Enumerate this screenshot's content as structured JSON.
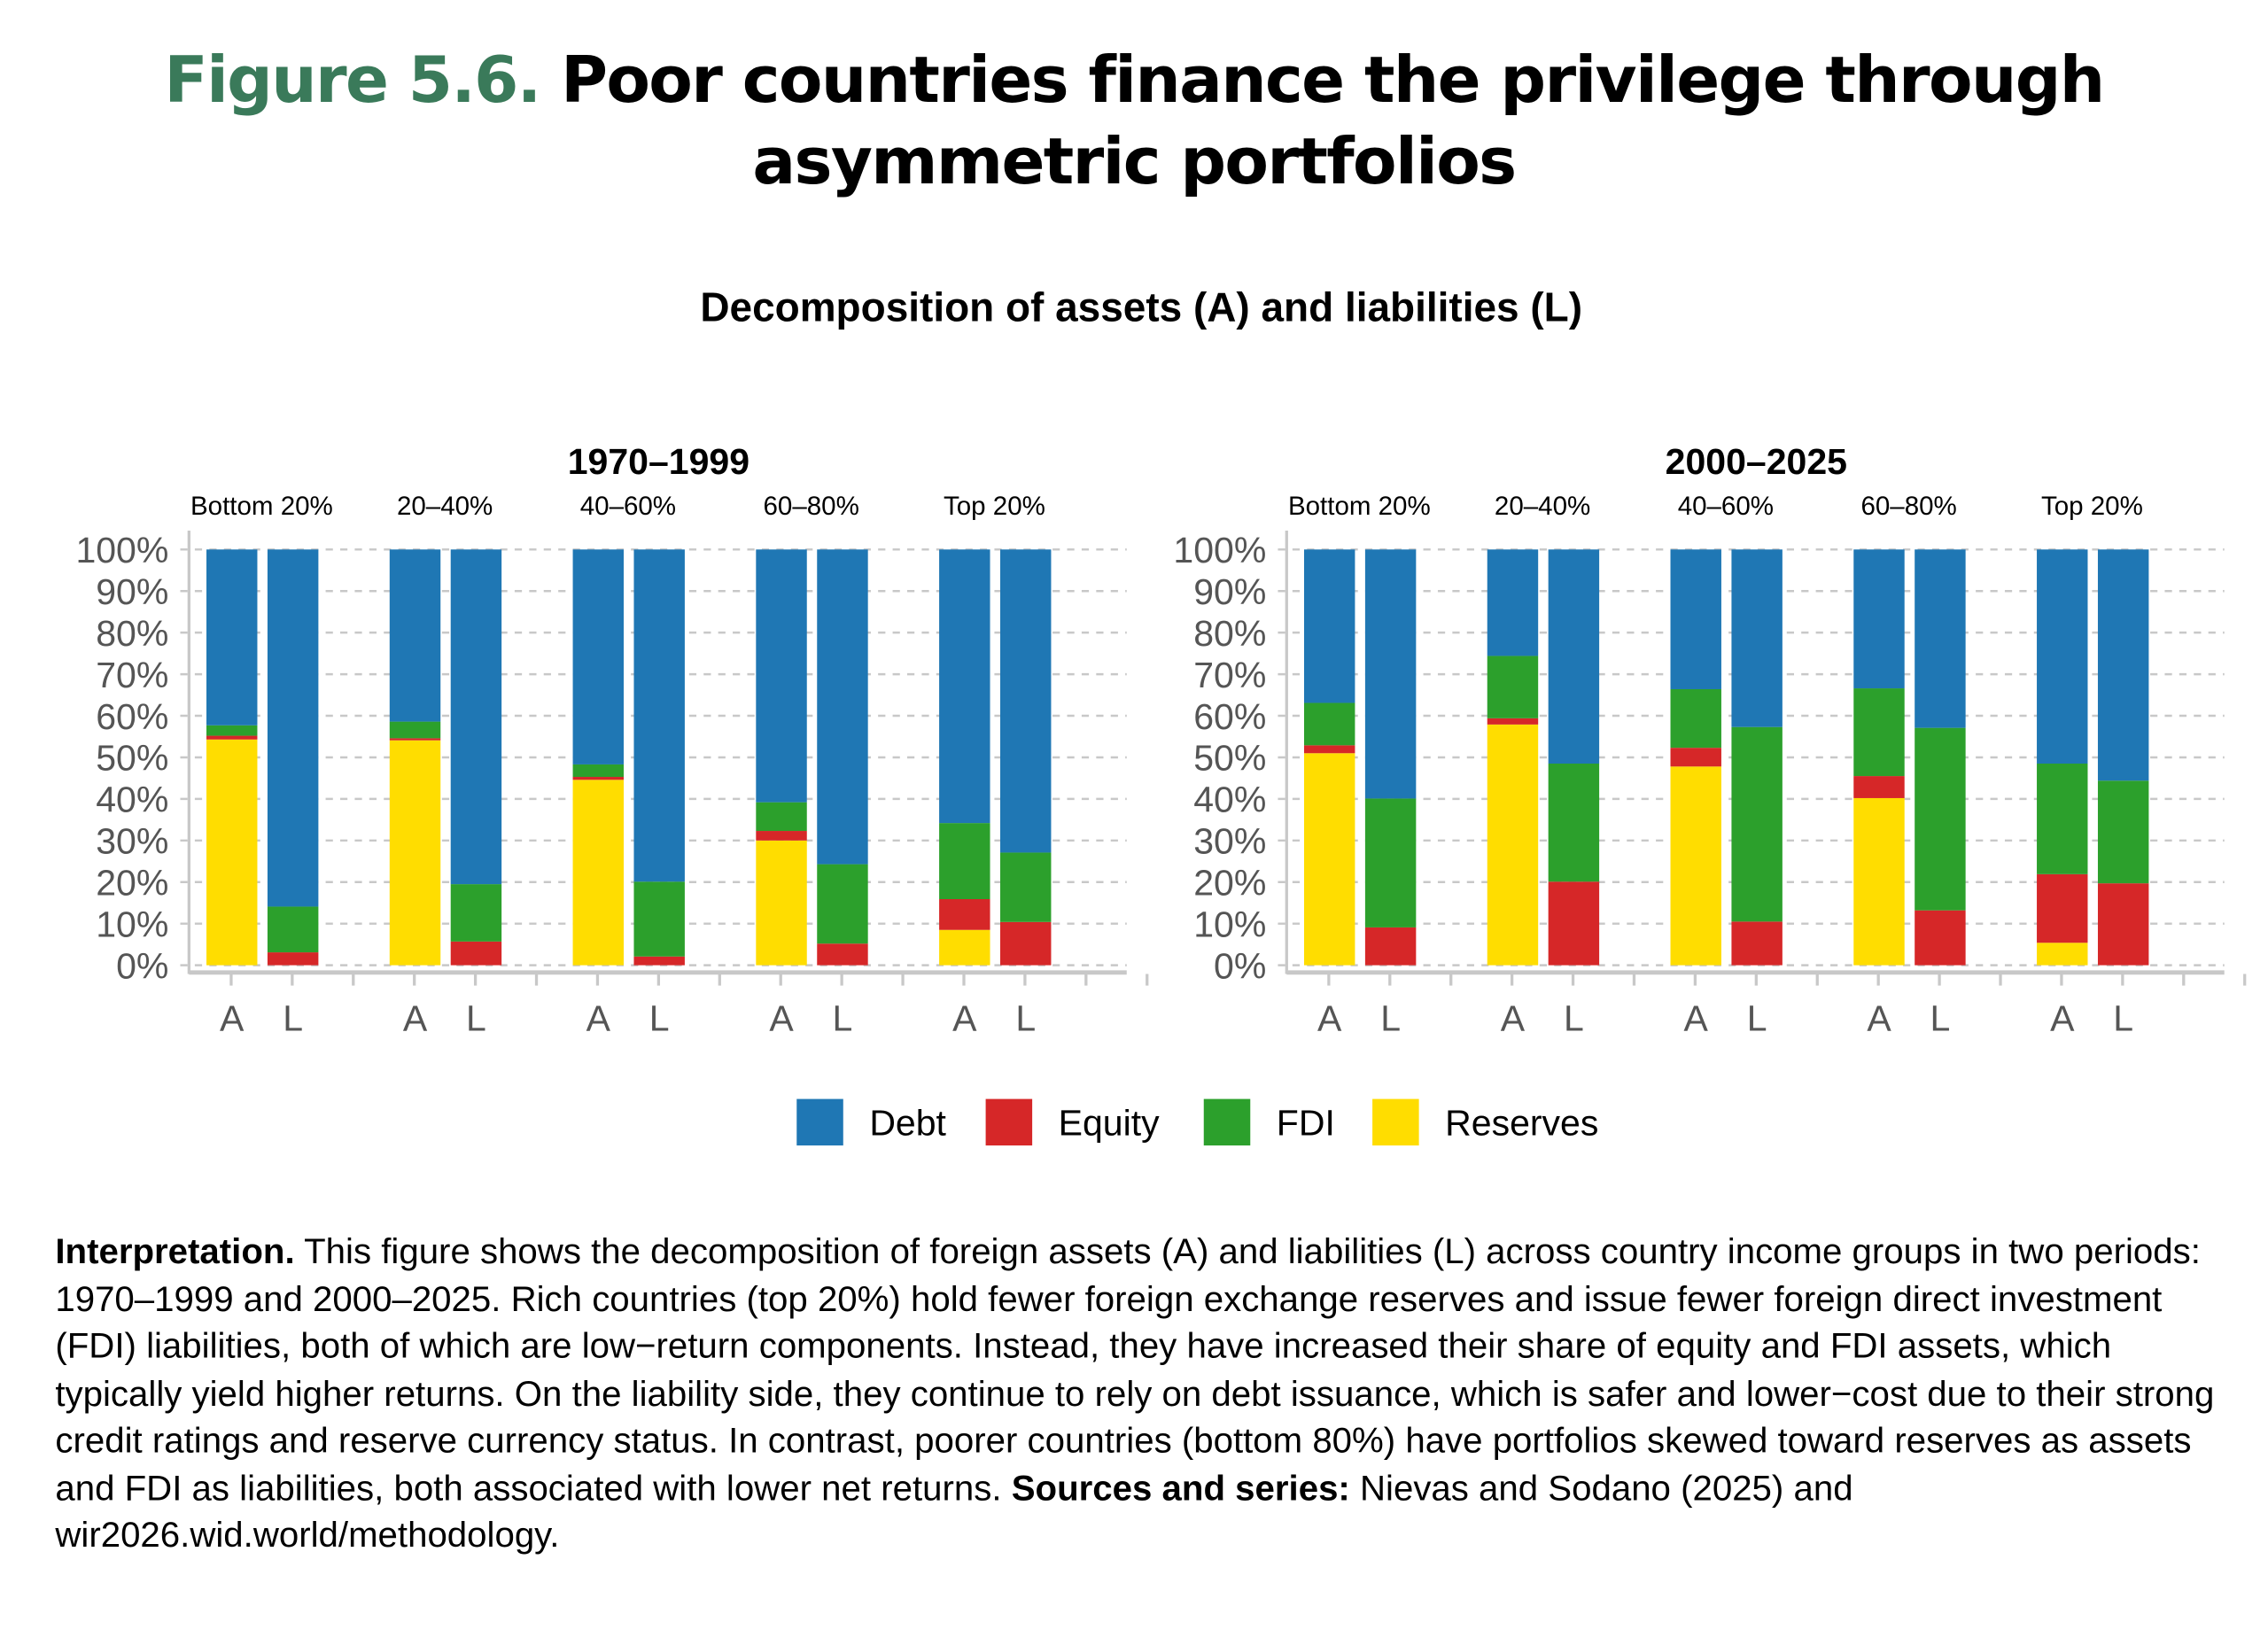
{
  "figure": {
    "label": "Figure 5.6.",
    "title": "Poor countries finance the privilege through asymmetric portfolios",
    "subtitle": "Decomposition of assets (A) and liabilities (L)"
  },
  "chart_data": {
    "type": "bar",
    "stacked": true,
    "title": "Decomposition of assets (A) and liabilities (L)",
    "ylim": [
      0,
      100
    ],
    "yticks": [
      "0%",
      "10%",
      "20%",
      "30%",
      "40%",
      "50%",
      "60%",
      "70%",
      "80%",
      "90%",
      "100%"
    ],
    "grid": true,
    "legend_position": "bottom",
    "groups": [
      "Bottom 20%",
      "20–40%",
      "40–60%",
      "60–80%",
      "Top 20%"
    ],
    "bar_labels": [
      "A",
      "L"
    ],
    "legend": [
      {
        "name": "Debt",
        "color": "#1f77b4"
      },
      {
        "name": "Equity",
        "color": "#d62728"
      },
      {
        "name": "FDI",
        "color": "#2ca02c"
      },
      {
        "name": "Reserves",
        "color": "#ffdd00"
      }
    ],
    "panels": [
      {
        "title": "1970–1999",
        "bars": [
          {
            "group": "Bottom 20%",
            "side": "A",
            "Reserves": 54.3,
            "Equity": 0.9,
            "FDI": 2.5,
            "Debt": 42.3
          },
          {
            "group": "Bottom 20%",
            "side": "L",
            "Reserves": 0,
            "Equity": 3.1,
            "FDI": 11.0,
            "Debt": 85.9
          },
          {
            "group": "20–40%",
            "side": "A",
            "Reserves": 54.1,
            "Equity": 0.5,
            "FDI": 4.0,
            "Debt": 41.4
          },
          {
            "group": "20–40%",
            "side": "L",
            "Reserves": 0,
            "Equity": 5.7,
            "FDI": 13.8,
            "Debt": 80.5
          },
          {
            "group": "40–60%",
            "side": "A",
            "Reserves": 44.6,
            "Equity": 0.7,
            "FDI": 3.0,
            "Debt": 51.7
          },
          {
            "group": "40–60%",
            "side": "L",
            "Reserves": 0,
            "Equity": 2.1,
            "FDI": 18.0,
            "Debt": 79.9
          },
          {
            "group": "60–80%",
            "side": "A",
            "Reserves": 30.0,
            "Equity": 2.3,
            "FDI": 6.9,
            "Debt": 60.8
          },
          {
            "group": "60–80%",
            "side": "L",
            "Reserves": 0,
            "Equity": 5.2,
            "FDI": 19.1,
            "Debt": 75.7
          },
          {
            "group": "Top 20%",
            "side": "A",
            "Reserves": 8.5,
            "Equity": 7.4,
            "FDI": 18.3,
            "Debt": 65.8
          },
          {
            "group": "Top 20%",
            "side": "L",
            "Reserves": 0,
            "Equity": 10.4,
            "FDI": 16.7,
            "Debt": 72.9
          }
        ]
      },
      {
        "title": "2000–2025",
        "bars": [
          {
            "group": "Bottom 20%",
            "side": "A",
            "Reserves": 51.0,
            "Equity": 1.9,
            "FDI": 10.2,
            "Debt": 36.9
          },
          {
            "group": "Bottom 20%",
            "side": "L",
            "Reserves": 0,
            "Equity": 9.1,
            "FDI": 31.0,
            "Debt": 59.9
          },
          {
            "group": "20–40%",
            "side": "A",
            "Reserves": 57.9,
            "Equity": 1.5,
            "FDI": 15.0,
            "Debt": 25.6
          },
          {
            "group": "20–40%",
            "side": "L",
            "Reserves": 0,
            "Equity": 20.1,
            "FDI": 28.4,
            "Debt": 51.5
          },
          {
            "group": "40–60%",
            "side": "A",
            "Reserves": 47.8,
            "Equity": 4.5,
            "FDI": 14.1,
            "Debt": 33.6
          },
          {
            "group": "40–60%",
            "side": "L",
            "Reserves": 0,
            "Equity": 10.5,
            "FDI": 46.8,
            "Debt": 42.7
          },
          {
            "group": "60–80%",
            "side": "A",
            "Reserves": 40.2,
            "Equity": 5.3,
            "FDI": 21.1,
            "Debt": 33.4
          },
          {
            "group": "60–80%",
            "side": "L",
            "Reserves": 0,
            "Equity": 13.2,
            "FDI": 43.9,
            "Debt": 42.9
          },
          {
            "group": "Top 20%",
            "side": "A",
            "Reserves": 5.4,
            "Equity": 16.5,
            "FDI": 26.6,
            "Debt": 51.5
          },
          {
            "group": "Top 20%",
            "side": "L",
            "Reserves": 0,
            "Equity": 19.7,
            "FDI": 24.7,
            "Debt": 55.6
          }
        ]
      }
    ]
  },
  "interpretation": {
    "label": "Interpretation.",
    "text": " This figure shows the decomposition of foreign assets (A) and liabilities (L) across country income groups in two periods: 1970–1999 and 2000–2025. Rich countries (top 20%) hold fewer foreign exchange reserves and issue fewer foreign direct investment (FDI) liabilities, both of which are low−return components. Instead, they have increased their share of equity and FDI assets, which typically yield higher returns. On the liability side, they continue to rely on debt issuance, which is safer and lower−cost due to their strong credit ratings and reserve currency status. In contrast, poorer countries (bottom 80%) have portfolios skewed toward reserves as assets and FDI as liabilities, both associated with lower net returns. ",
    "sources_label": "Sources and series:",
    "sources_text": " Nievas and Sodano (2025) and wir2026.wid.world/methodology."
  }
}
